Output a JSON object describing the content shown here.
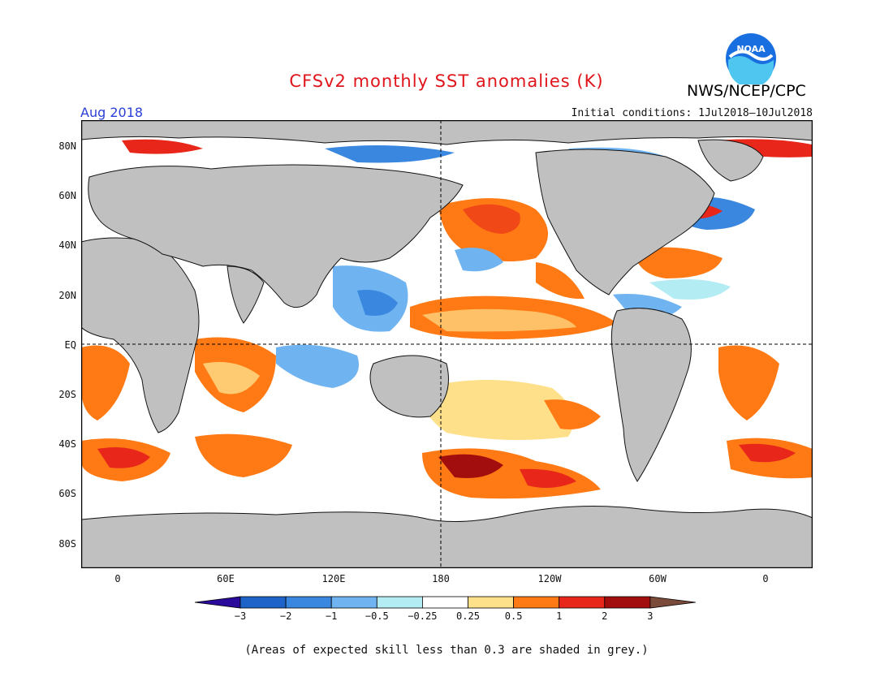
{
  "header": {
    "title": "CFSv2 monthly SST anomalies (K)",
    "org": "NWS/NCEP/CPC",
    "month": "Aug 2018",
    "initial_conditions": "Initial conditions: 1Jul2018–10Jul2018",
    "logo_text": "NOAA"
  },
  "map": {
    "lat_labels": [
      "80N",
      "60N",
      "40N",
      "20N",
      "EQ",
      "20S",
      "40S",
      "60S",
      "80S"
    ],
    "lon_labels": [
      "0",
      "60E",
      "120E",
      "180",
      "120W",
      "60W",
      "0"
    ],
    "land_color": "#c0c0c0",
    "grid_lines": [
      "EQ",
      "180"
    ]
  },
  "colorbar": {
    "labels": [
      "−3",
      "−2",
      "−1",
      "−0.5",
      "−0.25",
      "0.25",
      "0.5",
      "1",
      "2",
      "3"
    ],
    "colors": [
      "#2a0a9a",
      "#1e63c8",
      "#3a87e0",
      "#6fb4f0",
      "#b4ecf4",
      "#ffffff",
      "#ffe08a",
      "#ff7a14",
      "#e8261a",
      "#a20e0e",
      "#7a4a3a"
    ]
  },
  "footnote": "(Areas of expected skill less than 0.3 are shaded in grey.)"
}
